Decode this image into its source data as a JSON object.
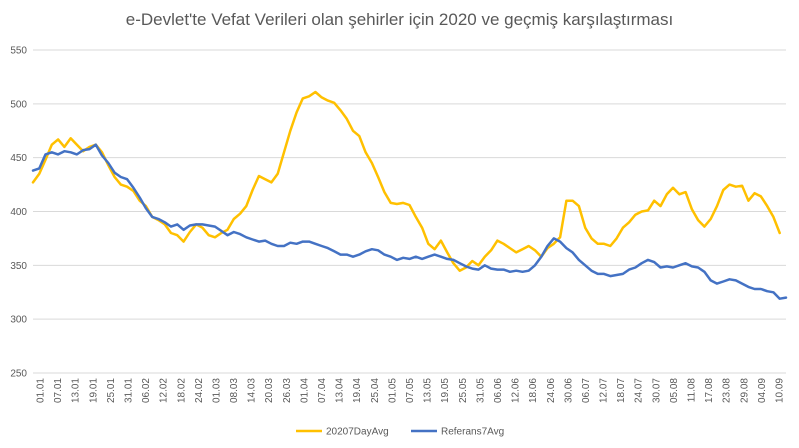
{
  "chart_data": {
    "type": "line",
    "title": "e-Devlet'te Vefat Verileri olan şehirler için 2020 ve geçmiş karşılaştırması",
    "xlabel": "",
    "ylabel": "",
    "ylim": [
      250,
      550
    ],
    "yticks": [
      250,
      300,
      350,
      400,
      450,
      500,
      550
    ],
    "grid": "horizontal",
    "legend_position": "bottom",
    "x_ticks": [
      "01.01",
      "07.01",
      "13.01",
      "19.01",
      "25.01",
      "31.01",
      "06.02",
      "12.02",
      "18.02",
      "24.02",
      "01.03",
      "08.03",
      "14.03",
      "20.03",
      "26.03",
      "01.04",
      "07.04",
      "13.04",
      "19.04",
      "25.04",
      "01.05",
      "07.05",
      "13.05",
      "19.05",
      "25.05",
      "31.05",
      "06.06",
      "12.06",
      "18.06",
      "24.06",
      "30.06",
      "06.07",
      "12.07",
      "18.07",
      "24.07",
      "30.07",
      "05.08",
      "11.08",
      "17.08",
      "23.08",
      "29.08",
      "04.09",
      "10.09"
    ],
    "series": [
      {
        "name": "20207DayAvg",
        "color": "#ffc000",
        "points": [
          [
            0,
            427
          ],
          [
            2,
            435
          ],
          [
            4,
            448
          ],
          [
            6,
            462
          ],
          [
            8,
            467
          ],
          [
            10,
            460
          ],
          [
            12,
            468
          ],
          [
            14,
            462
          ],
          [
            16,
            456
          ],
          [
            18,
            460
          ],
          [
            20,
            462
          ],
          [
            22,
            455
          ],
          [
            24,
            443
          ],
          [
            26,
            432
          ],
          [
            28,
            425
          ],
          [
            30,
            423
          ],
          [
            32,
            419
          ],
          [
            34,
            410
          ],
          [
            36,
            405
          ],
          [
            38,
            395
          ],
          [
            40,
            392
          ],
          [
            42,
            388
          ],
          [
            44,
            380
          ],
          [
            46,
            378
          ],
          [
            48,
            372
          ],
          [
            50,
            381
          ],
          [
            52,
            388
          ],
          [
            54,
            385
          ],
          [
            56,
            378
          ],
          [
            58,
            376
          ],
          [
            60,
            380
          ],
          [
            62,
            383
          ],
          [
            64,
            393
          ],
          [
            66,
            398
          ],
          [
            68,
            405
          ],
          [
            70,
            420
          ],
          [
            72,
            433
          ],
          [
            74,
            430
          ],
          [
            76,
            427
          ],
          [
            78,
            435
          ],
          [
            80,
            455
          ],
          [
            82,
            475
          ],
          [
            84,
            492
          ],
          [
            86,
            505
          ],
          [
            88,
            507
          ],
          [
            90,
            511
          ],
          [
            92,
            506
          ],
          [
            94,
            503
          ],
          [
            96,
            501
          ],
          [
            98,
            494
          ],
          [
            100,
            486
          ],
          [
            102,
            475
          ],
          [
            104,
            470
          ],
          [
            106,
            455
          ],
          [
            108,
            445
          ],
          [
            110,
            432
          ],
          [
            112,
            418
          ],
          [
            114,
            408
          ],
          [
            116,
            407
          ],
          [
            118,
            408
          ],
          [
            120,
            406
          ],
          [
            122,
            395
          ],
          [
            124,
            385
          ],
          [
            126,
            370
          ],
          [
            128,
            365
          ],
          [
            130,
            373
          ],
          [
            132,
            362
          ],
          [
            134,
            352
          ],
          [
            136,
            345
          ],
          [
            138,
            348
          ],
          [
            140,
            354
          ],
          [
            142,
            350
          ],
          [
            144,
            358
          ],
          [
            146,
            364
          ],
          [
            148,
            373
          ],
          [
            150,
            370
          ],
          [
            152,
            366
          ],
          [
            154,
            362
          ],
          [
            156,
            365
          ],
          [
            158,
            368
          ],
          [
            160,
            364
          ],
          [
            162,
            358
          ],
          [
            164,
            366
          ],
          [
            166,
            370
          ],
          [
            168,
            376
          ],
          [
            170,
            410
          ],
          [
            172,
            410
          ],
          [
            174,
            405
          ],
          [
            176,
            385
          ],
          [
            178,
            375
          ],
          [
            180,
            370
          ],
          [
            182,
            370
          ],
          [
            184,
            368
          ],
          [
            186,
            375
          ],
          [
            188,
            385
          ],
          [
            190,
            390
          ],
          [
            192,
            397
          ],
          [
            194,
            400
          ],
          [
            196,
            401
          ],
          [
            198,
            410
          ],
          [
            200,
            405
          ],
          [
            202,
            416
          ],
          [
            204,
            422
          ],
          [
            206,
            416
          ],
          [
            208,
            418
          ],
          [
            210,
            402
          ],
          [
            212,
            392
          ],
          [
            214,
            386
          ],
          [
            216,
            393
          ],
          [
            218,
            405
          ],
          [
            220,
            420
          ],
          [
            222,
            425
          ],
          [
            224,
            423
          ],
          [
            226,
            424
          ],
          [
            228,
            410
          ],
          [
            230,
            417
          ],
          [
            232,
            414
          ],
          [
            234,
            405
          ],
          [
            236,
            395
          ],
          [
            238,
            380
          ]
        ]
      },
      {
        "name": "Referans7Avg",
        "color": "#4472c4",
        "points": [
          [
            0,
            438
          ],
          [
            2,
            440
          ],
          [
            4,
            453
          ],
          [
            6,
            455
          ],
          [
            8,
            453
          ],
          [
            10,
            456
          ],
          [
            12,
            455
          ],
          [
            14,
            453
          ],
          [
            16,
            457
          ],
          [
            18,
            458
          ],
          [
            20,
            462
          ],
          [
            22,
            452
          ],
          [
            24,
            445
          ],
          [
            26,
            436
          ],
          [
            28,
            432
          ],
          [
            30,
            430
          ],
          [
            32,
            422
          ],
          [
            34,
            413
          ],
          [
            36,
            403
          ],
          [
            38,
            395
          ],
          [
            40,
            393
          ],
          [
            42,
            390
          ],
          [
            44,
            386
          ],
          [
            46,
            388
          ],
          [
            48,
            383
          ],
          [
            50,
            387
          ],
          [
            52,
            388
          ],
          [
            54,
            388
          ],
          [
            56,
            387
          ],
          [
            58,
            386
          ],
          [
            60,
            382
          ],
          [
            62,
            378
          ],
          [
            64,
            381
          ],
          [
            66,
            379
          ],
          [
            68,
            376
          ],
          [
            70,
            374
          ],
          [
            72,
            372
          ],
          [
            74,
            373
          ],
          [
            76,
            370
          ],
          [
            78,
            368
          ],
          [
            80,
            368
          ],
          [
            82,
            371
          ],
          [
            84,
            370
          ],
          [
            86,
            372
          ],
          [
            88,
            372
          ],
          [
            90,
            370
          ],
          [
            92,
            368
          ],
          [
            94,
            366
          ],
          [
            96,
            363
          ],
          [
            98,
            360
          ],
          [
            100,
            360
          ],
          [
            102,
            358
          ],
          [
            104,
            360
          ],
          [
            106,
            363
          ],
          [
            108,
            365
          ],
          [
            110,
            364
          ],
          [
            112,
            360
          ],
          [
            114,
            358
          ],
          [
            116,
            355
          ],
          [
            118,
            357
          ],
          [
            120,
            356
          ],
          [
            122,
            358
          ],
          [
            124,
            356
          ],
          [
            126,
            358
          ],
          [
            128,
            360
          ],
          [
            130,
            358
          ],
          [
            132,
            356
          ],
          [
            134,
            355
          ],
          [
            136,
            352
          ],
          [
            138,
            349
          ],
          [
            140,
            347
          ],
          [
            142,
            346
          ],
          [
            144,
            350
          ],
          [
            146,
            347
          ],
          [
            148,
            346
          ],
          [
            150,
            346
          ],
          [
            152,
            344
          ],
          [
            154,
            345
          ],
          [
            156,
            344
          ],
          [
            158,
            345
          ],
          [
            160,
            350
          ],
          [
            162,
            358
          ],
          [
            164,
            368
          ],
          [
            166,
            375
          ],
          [
            168,
            372
          ],
          [
            170,
            366
          ],
          [
            172,
            362
          ],
          [
            174,
            355
          ],
          [
            176,
            350
          ],
          [
            178,
            345
          ],
          [
            180,
            342
          ],
          [
            182,
            342
          ],
          [
            184,
            340
          ],
          [
            186,
            341
          ],
          [
            188,
            342
          ],
          [
            190,
            346
          ],
          [
            192,
            348
          ],
          [
            194,
            352
          ],
          [
            196,
            355
          ],
          [
            198,
            353
          ],
          [
            200,
            348
          ],
          [
            202,
            349
          ],
          [
            204,
            348
          ],
          [
            206,
            350
          ],
          [
            208,
            352
          ],
          [
            210,
            349
          ],
          [
            212,
            348
          ],
          [
            214,
            344
          ],
          [
            216,
            336
          ],
          [
            218,
            333
          ],
          [
            220,
            335
          ],
          [
            222,
            337
          ],
          [
            224,
            336
          ],
          [
            226,
            333
          ],
          [
            228,
            330
          ],
          [
            230,
            328
          ],
          [
            232,
            328
          ],
          [
            234,
            326
          ],
          [
            236,
            325
          ],
          [
            238,
            319
          ],
          [
            240,
            320
          ]
        ]
      }
    ]
  }
}
